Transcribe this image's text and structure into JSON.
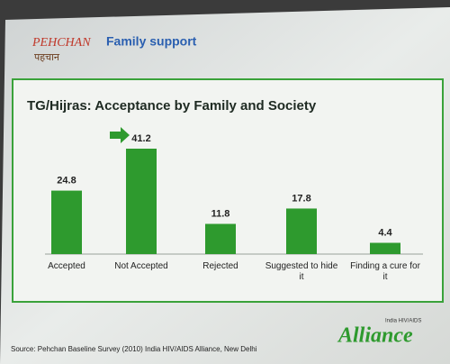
{
  "header": {
    "logo": "PEHCHAN",
    "logo_hindi": "पहचान",
    "title": "Family support"
  },
  "chart_data": {
    "type": "bar",
    "title": "TG/Hijras: Acceptance by Family and Society",
    "categories": [
      "Accepted",
      "Not Accepted",
      "Rejected",
      "Suggested to hide it",
      "Finding a cure for it"
    ],
    "values": [
      24.8,
      41.2,
      11.8,
      17.8,
      4.4
    ],
    "color": "#2e9a2e"
  },
  "footer": {
    "source": "Source: Pehchan Baseline Survey (2010) India HIV/AIDS Alliance, New Delhi",
    "org_tag": "India HIV/AIDS",
    "org": "Alliance"
  }
}
